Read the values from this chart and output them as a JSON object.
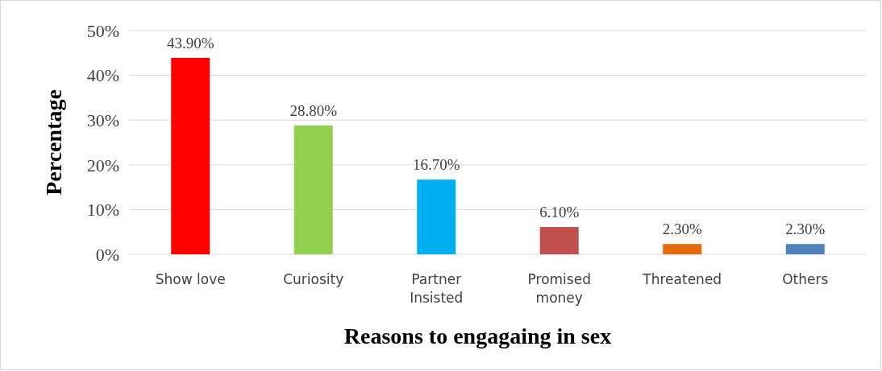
{
  "chart_data": {
    "type": "bar",
    "xlabel": "Reasons to engagaing in sex",
    "ylabel": "Percentage",
    "categories": [
      "Show love",
      "Curiosity",
      "Partner Insisted",
      "Promised money",
      "Threatened",
      "Others"
    ],
    "values": [
      43.9,
      28.8,
      16.7,
      6.1,
      2.3,
      2.3
    ],
    "colors": [
      "#ff0000",
      "#92d050",
      "#00b0f0",
      "#c0504d",
      "#e36c09",
      "#4f81bd"
    ],
    "value_labels": [
      "43.90%",
      "28.80%",
      "16.70%",
      "6.10%",
      "2.30%",
      "2.30%"
    ],
    "ylim": [
      0,
      50
    ],
    "yticks": [
      {
        "value": 0,
        "label": "0%"
      },
      {
        "value": 10,
        "label": "10%"
      },
      {
        "value": 20,
        "label": "20%"
      },
      {
        "value": 30,
        "label": "30%"
      },
      {
        "value": 40,
        "label": "40%"
      },
      {
        "value": 50,
        "label": "50%"
      }
    ],
    "grid": "y"
  }
}
